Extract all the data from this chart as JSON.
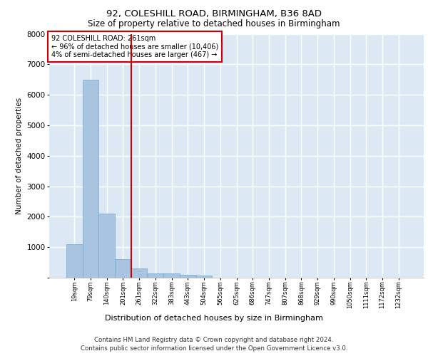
{
  "title1": "92, COLESHILL ROAD, BIRMINGHAM, B36 8AD",
  "title2": "Size of property relative to detached houses in Birmingham",
  "bottom_label": "Distribution of detached houses by size in Birmingham",
  "ylabel": "Number of detached properties",
  "footer1": "Contains HM Land Registry data © Crown copyright and database right 2024.",
  "footer2": "Contains public sector information licensed under the Open Government Licence v3.0.",
  "annotation_line1": "92 COLESHILL ROAD: 261sqm",
  "annotation_line2": "← 96% of detached houses are smaller (10,406)",
  "annotation_line3": "4% of semi-detached houses are larger (467) →",
  "red_line_x": 4,
  "categories": [
    "19sqm",
    "79sqm",
    "140sqm",
    "201sqm",
    "261sqm",
    "322sqm",
    "383sqm",
    "443sqm",
    "504sqm",
    "565sqm",
    "625sqm",
    "686sqm",
    "747sqm",
    "807sqm",
    "868sqm",
    "929sqm",
    "990sqm",
    "1050sqm",
    "1111sqm",
    "1172sqm",
    "1232sqm"
  ],
  "values": [
    1100,
    6500,
    2100,
    600,
    300,
    150,
    130,
    100,
    70,
    0,
    0,
    0,
    0,
    0,
    0,
    0,
    0,
    0,
    0,
    0,
    0
  ],
  "bar_color": "#a8c4e0",
  "bar_edgecolor": "#6fa8d0",
  "background_color": "#dce9f5",
  "grid_color": "#ffffff",
  "red_line_color": "#cc0000",
  "annotation_box_edgecolor": "#cc0000",
  "ylim": [
    0,
    8000
  ],
  "yticks": [
    0,
    1000,
    2000,
    3000,
    4000,
    5000,
    6000,
    7000,
    8000
  ]
}
